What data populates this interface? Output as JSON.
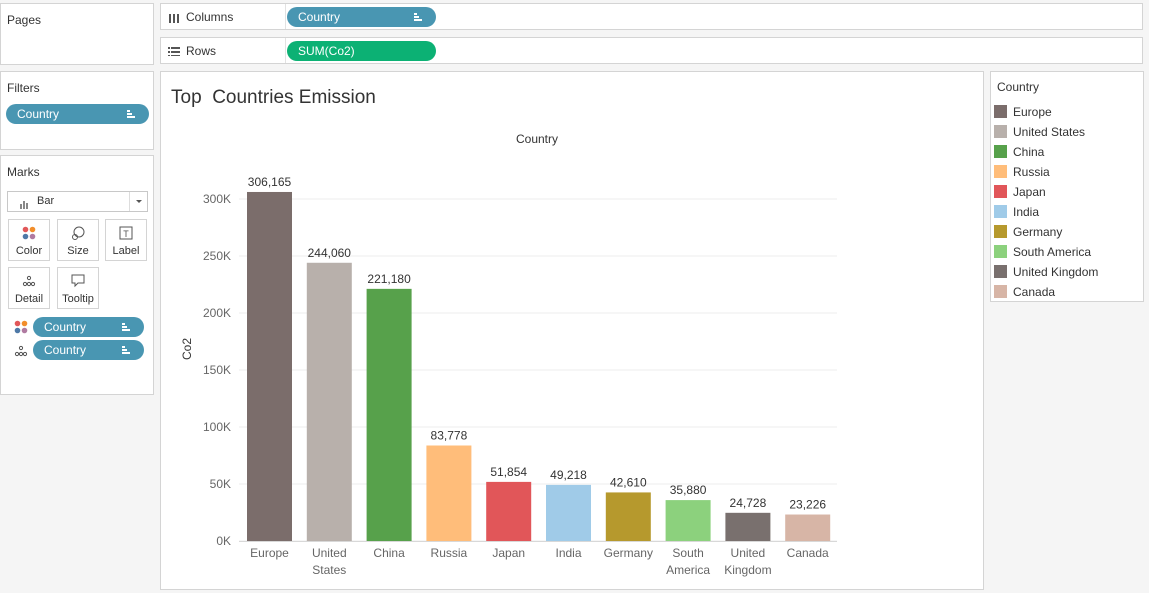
{
  "pages": {
    "title": "Pages"
  },
  "shelves": {
    "columns": {
      "label": "Columns",
      "pill": "Country",
      "pill_color": "#4996b2"
    },
    "rows": {
      "label": "Rows",
      "pill": "SUM(Co2)",
      "pill_color": "#0cb174"
    }
  },
  "filters": {
    "title": "Filters",
    "pill": "Country"
  },
  "marks": {
    "title": "Marks",
    "type": "Bar",
    "buttons": {
      "color": "Color",
      "size": "Size",
      "label": "Label",
      "detail": "Detail",
      "tooltip": "Tooltip"
    },
    "field_pills": [
      "Country",
      "Country"
    ]
  },
  "sheet": {
    "title": "Top  Countries Emission"
  },
  "legend": {
    "title": "Country",
    "items": [
      {
        "label": "Europe",
        "color": "#7b6d6b"
      },
      {
        "label": "United States",
        "color": "#b8b0ab"
      },
      {
        "label": "China",
        "color": "#57a14b"
      },
      {
        "label": "Russia",
        "color": "#ffbd7a"
      },
      {
        "label": "Japan",
        "color": "#e15659"
      },
      {
        "label": "India",
        "color": "#a0cbe8"
      },
      {
        "label": "Germany",
        "color": "#b6992d"
      },
      {
        "label": "South America",
        "color": "#8cd17d"
      },
      {
        "label": "United Kingdom",
        "color": "#79706e"
      },
      {
        "label": "Canada",
        "color": "#d7b5a6"
      }
    ]
  },
  "chart_data": {
    "type": "bar",
    "title": "Country",
    "xlabel": "",
    "ylabel": "Co2",
    "ylim": [
      0,
      330000
    ],
    "yticks": [
      0,
      50000,
      100000,
      150000,
      200000,
      250000,
      300000
    ],
    "ytick_labels": [
      "0K",
      "50K",
      "100K",
      "150K",
      "200K",
      "250K",
      "300K"
    ],
    "categories": [
      "Europe",
      "United States",
      "China",
      "Russia",
      "Japan",
      "India",
      "Germany",
      "South America",
      "United Kingdom",
      "Canada"
    ],
    "category_lines": [
      [
        "Europe"
      ],
      [
        "United",
        "States"
      ],
      [
        "China"
      ],
      [
        "Russia"
      ],
      [
        "Japan"
      ],
      [
        "India"
      ],
      [
        "Germany"
      ],
      [
        "South",
        "America"
      ],
      [
        "United",
        "Kingdom"
      ],
      [
        "Canada"
      ]
    ],
    "values": [
      306165,
      244060,
      221180,
      83778,
      51854,
      49218,
      42610,
      35880,
      24728,
      23226
    ],
    "value_labels": [
      "306,165",
      "244,060",
      "221,180",
      "83,778",
      "51,854",
      "49,218",
      "42,610",
      "35,880",
      "24,728",
      "23,226"
    ],
    "colors": [
      "#7b6d6b",
      "#b8b0ab",
      "#57a14b",
      "#ffbd7a",
      "#e15659",
      "#a0cbe8",
      "#b6992d",
      "#8cd17d",
      "#79706e",
      "#d7b5a6"
    ],
    "grid": true
  }
}
